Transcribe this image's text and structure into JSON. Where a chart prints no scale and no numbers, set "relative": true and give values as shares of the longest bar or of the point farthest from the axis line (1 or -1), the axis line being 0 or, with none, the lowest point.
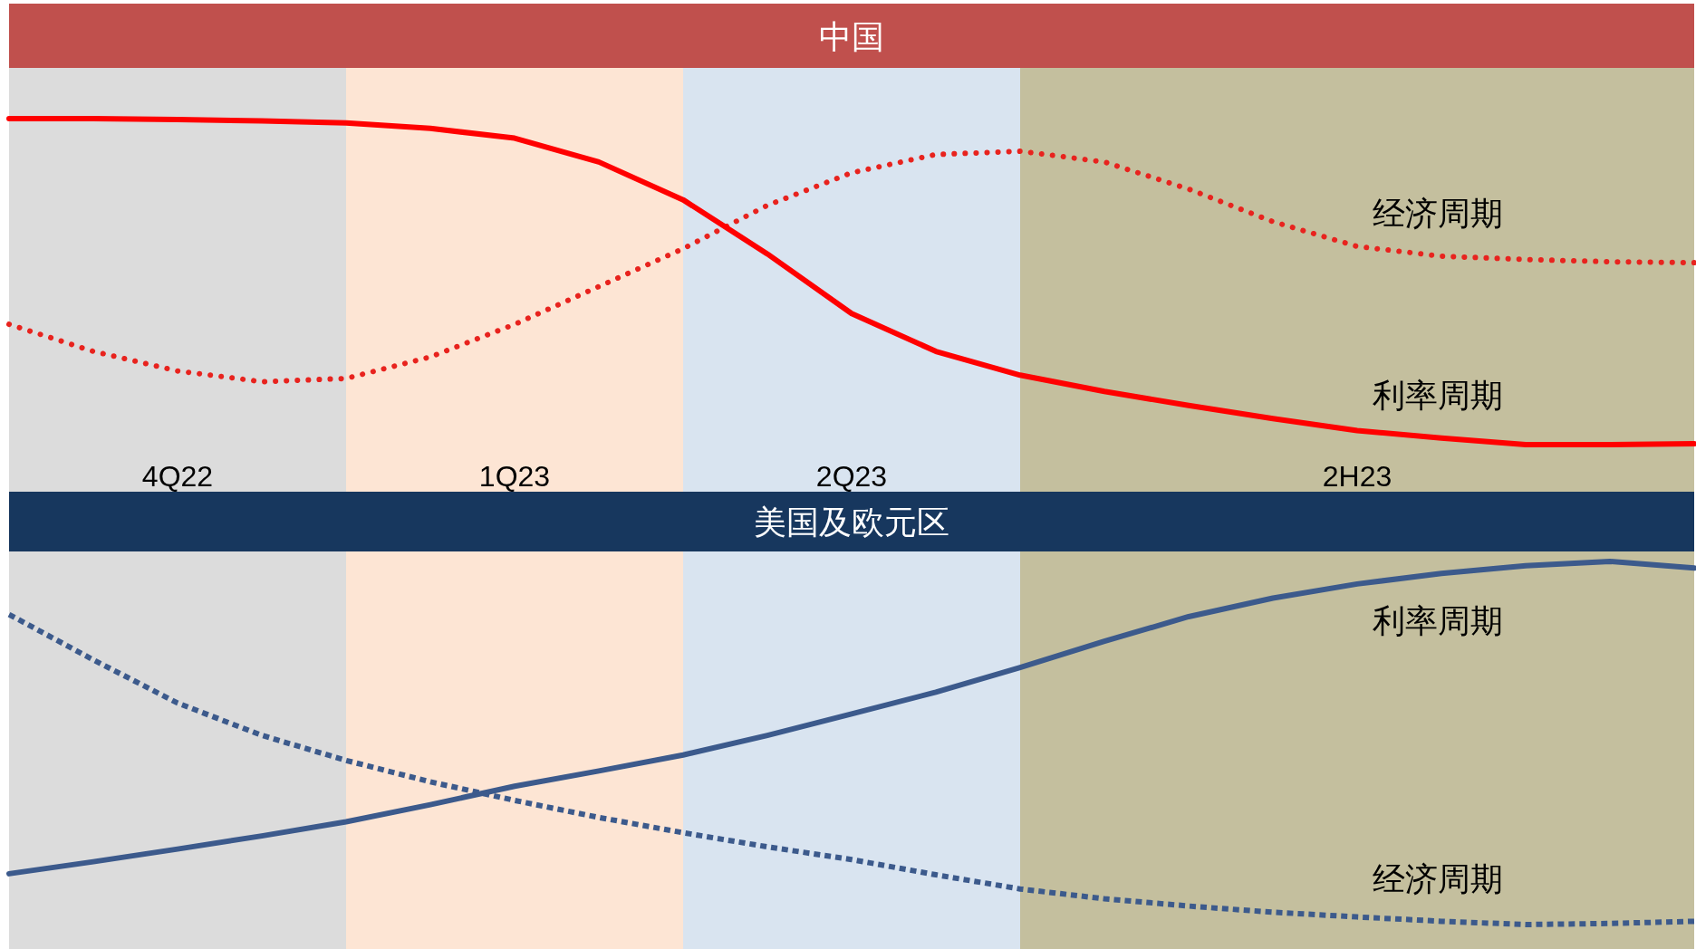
{
  "chart_data": [
    {
      "type": "line",
      "title": "中国",
      "relative": true,
      "tick_labels": "x",
      "categories": [
        null,
        null,
        "4Q22",
        null,
        null,
        null,
        "1Q23",
        null,
        null,
        null,
        "2Q23",
        null,
        null,
        null,
        null,
        null,
        "2H23",
        null,
        null,
        null,
        null
      ],
      "series": [
        {
          "name": "经济周期",
          "color": "#e8231e",
          "line_style": "dotted",
          "values": [
            0.369,
            0.286,
            0.226,
            0.193,
            0.203,
            0.269,
            0.369,
            0.485,
            0.601,
            0.734,
            0.834,
            0.89,
            0.9,
            0.867,
            0.784,
            0.684,
            0.608,
            0.578,
            0.568,
            0.561,
            0.558
          ]
        },
        {
          "name": "利率周期",
          "color": "#ff0000",
          "line_style": "solid",
          "values": [
            1.0,
            1.0,
            0.997,
            0.993,
            0.987,
            0.97,
            0.94,
            0.867,
            0.751,
            0.585,
            0.402,
            0.286,
            0.213,
            0.163,
            0.12,
            0.08,
            0.043,
            0.02,
            0,
            0,
            0.003
          ]
        }
      ]
    },
    {
      "type": "line",
      "title": "美国及欧元区",
      "relative": true,
      "categories": [
        null,
        null,
        null,
        null,
        null,
        null,
        null,
        null,
        null,
        null,
        null,
        null,
        null,
        null,
        null,
        null,
        null,
        null,
        null,
        null,
        null
      ],
      "series": [
        {
          "name": "利率周期",
          "color": "#3c5a8c",
          "line_style": "solid",
          "values": [
            0.14,
            0.173,
            0.208,
            0.244,
            0.283,
            0.33,
            0.381,
            0.423,
            0.467,
            0.521,
            0.58,
            0.64,
            0.708,
            0.78,
            0.848,
            0.899,
            0.938,
            0.967,
            0.988,
            1.0,
            0.982
          ]
        },
        {
          "name": "经济周期",
          "color": "#3c5a8c",
          "line_style": "dashed",
          "values": [
            0.854,
            0.729,
            0.61,
            0.521,
            0.452,
            0.393,
            0.342,
            0.295,
            0.253,
            0.214,
            0.179,
            0.137,
            0.098,
            0.071,
            0.051,
            0.034,
            0.021,
            0.009,
            0,
            0.003,
            0.009
          ]
        }
      ]
    }
  ]
}
